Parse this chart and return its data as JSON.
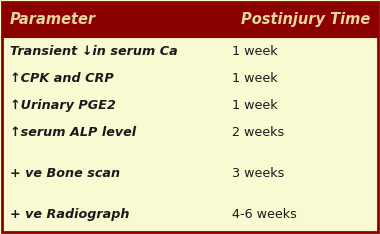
{
  "header_bg": "#8B0000",
  "header_text_color": "#E8D5A0",
  "body_bg": "#FAFAD2",
  "border_color": "#8B0000",
  "text_color": "#1a1a1a",
  "header_left": "Parameter",
  "header_right": "Postinjury Time",
  "rows": [
    {
      "left": "Transient ↓in serum Ca",
      "right": "1 week",
      "gap_before": false
    },
    {
      "left": "↑CPK and CRP",
      "right": "1 week",
      "gap_before": false
    },
    {
      "left": "↑Urinary PGE2",
      "right": "1 week",
      "gap_before": false
    },
    {
      "left": "↑serum ALP level",
      "right": "2 weeks",
      "gap_before": false
    },
    {
      "left": "+ ve Bone scan",
      "right": "3 weeks",
      "gap_before": true
    },
    {
      "left": "+ ve Radiograph",
      "right": "4-6 weeks",
      "gap_before": true
    }
  ],
  "header_fontsize": 10.5,
  "row_fontsize": 9.2,
  "figsize": [
    3.8,
    2.34
  ],
  "dpi": 100
}
